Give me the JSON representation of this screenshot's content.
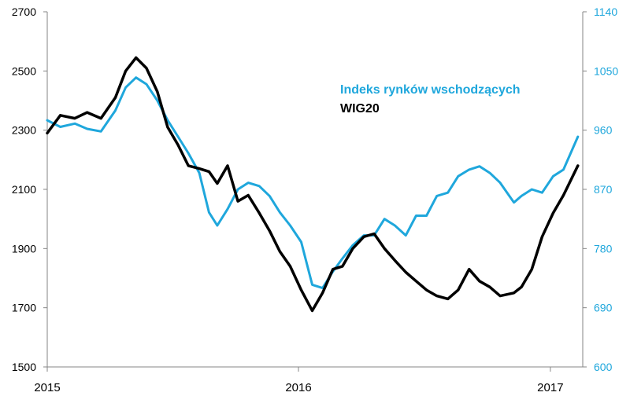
{
  "chart_data": {
    "type": "line",
    "title": "",
    "xlabel": "",
    "ylabel": "",
    "x_ticks": [
      "2015",
      "2016",
      "2017"
    ],
    "y_left_range": [
      1500,
      2700
    ],
    "y_left_ticks": [
      1500,
      1700,
      1900,
      2100,
      2300,
      2500,
      2700
    ],
    "y_right_range": [
      600,
      1140
    ],
    "y_right_ticks": [
      600,
      690,
      780,
      870,
      960,
      1050,
      1140
    ],
    "grid": false,
    "legend_position": "top-right",
    "colors": {
      "emerging": "#1fa7dc",
      "wig20": "#000000"
    },
    "series": [
      {
        "name": "Indeks rynków wschodzących",
        "axis": "right",
        "x": [
          "2015-01-01",
          "2015-01-20",
          "2015-02-10",
          "2015-02-28",
          "2015-03-20",
          "2015-04-10",
          "2015-04-25",
          "2015-05-10",
          "2015-05-25",
          "2015-06-10",
          "2015-06-25",
          "2015-07-10",
          "2015-07-25",
          "2015-08-10",
          "2015-08-24",
          "2015-09-05",
          "2015-09-20",
          "2015-10-05",
          "2015-10-20",
          "2015-11-05",
          "2015-11-20",
          "2015-12-05",
          "2015-12-20",
          "2016-01-05",
          "2016-01-21",
          "2016-02-05",
          "2016-02-20",
          "2016-03-05",
          "2016-03-20",
          "2016-04-05",
          "2016-04-20",
          "2016-05-05",
          "2016-05-20",
          "2016-06-05",
          "2016-06-20",
          "2016-07-05",
          "2016-07-20",
          "2016-08-05",
          "2016-08-20",
          "2016-09-05",
          "2016-09-20",
          "2016-10-05",
          "2016-10-20",
          "2016-11-09",
          "2016-11-20",
          "2016-12-05",
          "2016-12-20",
          "2017-01-05",
          "2017-01-20",
          "2017-02-10"
        ],
        "values": [
          975,
          965,
          970,
          962,
          958,
          990,
          1025,
          1040,
          1030,
          1005,
          975,
          950,
          925,
          895,
          835,
          815,
          840,
          870,
          880,
          875,
          860,
          835,
          815,
          790,
          725,
          720,
          745,
          765,
          785,
          800,
          800,
          825,
          815,
          800,
          830,
          830,
          860,
          865,
          890,
          900,
          905,
          895,
          880,
          850,
          860,
          870,
          865,
          890,
          900,
          950
        ]
      },
      {
        "name": "WIG20",
        "axis": "left",
        "x": [
          "2015-01-01",
          "2015-01-20",
          "2015-02-10",
          "2015-02-28",
          "2015-03-20",
          "2015-04-10",
          "2015-04-25",
          "2015-05-10",
          "2015-05-25",
          "2015-06-10",
          "2015-06-25",
          "2015-07-10",
          "2015-07-25",
          "2015-08-10",
          "2015-08-24",
          "2015-09-05",
          "2015-09-20",
          "2015-10-05",
          "2015-10-20",
          "2015-11-05",
          "2015-11-20",
          "2015-12-05",
          "2015-12-20",
          "2016-01-05",
          "2016-01-21",
          "2016-02-05",
          "2016-02-20",
          "2016-03-05",
          "2016-03-20",
          "2016-04-05",
          "2016-04-20",
          "2016-05-05",
          "2016-05-20",
          "2016-06-05",
          "2016-06-20",
          "2016-07-05",
          "2016-07-20",
          "2016-08-05",
          "2016-08-20",
          "2016-09-05",
          "2016-09-20",
          "2016-10-05",
          "2016-10-20",
          "2016-11-09",
          "2016-11-20",
          "2016-12-05",
          "2016-12-20",
          "2017-01-05",
          "2017-01-20",
          "2017-02-10"
        ],
        "values": [
          2290,
          2350,
          2340,
          2360,
          2340,
          2410,
          2500,
          2545,
          2510,
          2430,
          2310,
          2250,
          2180,
          2170,
          2160,
          2120,
          2180,
          2060,
          2080,
          2020,
          1960,
          1890,
          1840,
          1760,
          1690,
          1750,
          1830,
          1840,
          1900,
          1940,
          1950,
          1900,
          1860,
          1820,
          1790,
          1760,
          1740,
          1730,
          1760,
          1830,
          1790,
          1770,
          1740,
          1750,
          1770,
          1830,
          1940,
          2020,
          2080,
          2180
        ]
      }
    ]
  }
}
